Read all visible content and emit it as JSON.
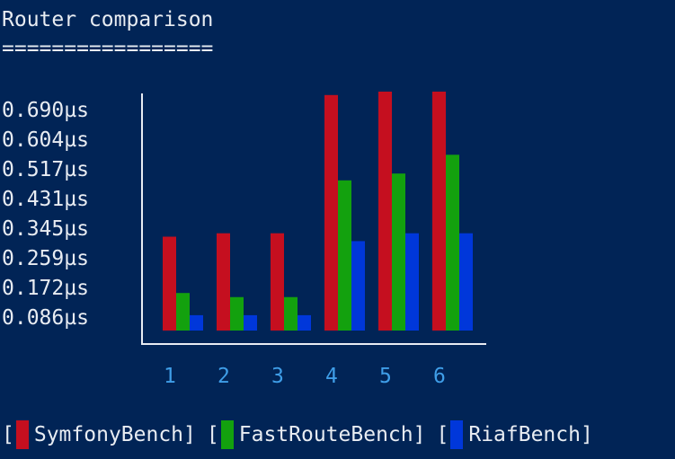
{
  "header": {
    "title": "Router comparison",
    "underline": "================="
  },
  "chart_data": {
    "type": "bar",
    "title": "Router comparison",
    "xlabel": "",
    "ylabel": "",
    "categories": [
      "1",
      "2",
      "3",
      "4",
      "5",
      "6"
    ],
    "y_ticks": [
      "0.690µs",
      "0.604µs",
      "0.517µs",
      "0.431µs",
      "0.345µs",
      "0.259µs",
      "0.172µs",
      "0.086µs"
    ],
    "ylim": [
      0,
      0.72
    ],
    "legend_position": "bottom",
    "series": [
      {
        "name": "SymfonyBench",
        "color": "#c50f1f",
        "values": [
          0.275,
          0.285,
          0.285,
          0.69,
          0.7,
          0.7
        ]
      },
      {
        "name": "FastRouteBench",
        "color": "#13a10e",
        "values": [
          0.11,
          0.098,
          0.098,
          0.44,
          0.46,
          0.515
        ]
      },
      {
        "name": "RiafBench",
        "color": "#0037da",
        "values": [
          0.045,
          0.045,
          0.045,
          0.262,
          0.285,
          0.285
        ]
      }
    ]
  }
}
